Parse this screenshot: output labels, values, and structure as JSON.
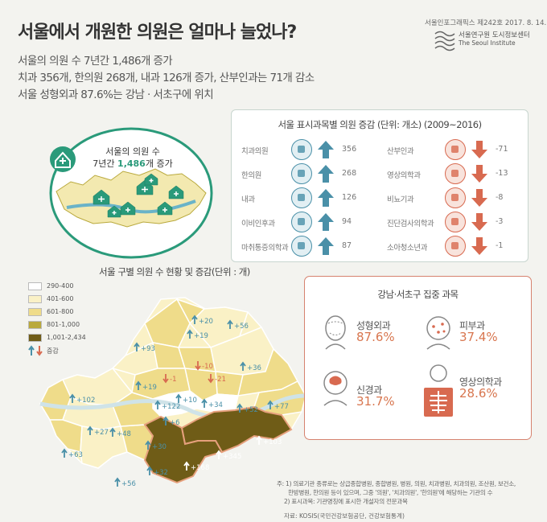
{
  "header": {
    "title": "서울에서 개원한 의원은 얼마나 늘었나?",
    "issue": "서울인포그래픽스 제242호 2017. 8. 14.",
    "institute_ko": "서울연구원 도시정보센터",
    "institute_en": "The Seoul Institute"
  },
  "summary": [
    "서울의 의원 수 7년간 1,486개 증가",
    "치과 356개, 한의원 268개, 내과 126개 증가, 산부인과는 71개 감소",
    "서울 성형외과 87.6%는 강남 · 서초구에 위치"
  ],
  "callout": {
    "line1": "서울의 의원 수",
    "line2_pre": "7년간 ",
    "line2_num": "1,486",
    "line2_post": "개 증가"
  },
  "colors": {
    "green": "#2a9a7a",
    "teal": "#4a90a8",
    "red": "#d86a50",
    "accent": "#e6a07d",
    "olive_dark": "#6f5c17"
  },
  "chart_data": [
    {
      "type": "bar",
      "title": "서울 표시과목별 의원 증감 (단위: 개소) (2009~2016)",
      "categories": [
        "치과의원",
        "한의원",
        "내과",
        "이비인후과",
        "마취통증의학과",
        "산부인과",
        "영상의학과",
        "비뇨기과",
        "진단검사의학과",
        "소아청소년과"
      ],
      "values": [
        356,
        268,
        126,
        94,
        87,
        -71,
        -13,
        -8,
        -3,
        -1
      ],
      "icons": [
        "tooth-icon",
        "herbal-medicine-icon",
        "xray-chest-icon",
        "ear-icon",
        "syringe-icon",
        "pregnant-woman-icon",
        "xray-body-icon",
        "kidney-icon",
        "lab-report-icon",
        "child-doctor-icon"
      ]
    },
    {
      "type": "map",
      "title": "서울 구별 의원 수 현황 및 증감(단위 : 개)",
      "legend": [
        "290-400",
        "401-600",
        "601-800",
        "801-1,000",
        "1,001-2,434",
        "증감"
      ],
      "legend_colors": [
        "#ffffff",
        "#faf1c6",
        "#efdc8a",
        "#b9a93c",
        "#6f5c17"
      ],
      "changes": [
        "+20",
        "+56",
        "+19",
        "+93",
        "-10",
        "-1",
        "-21",
        "+36",
        "+19",
        "+102",
        "+122",
        "+10",
        "+34",
        "+52",
        "+77",
        "+6",
        "+27",
        "+48",
        "+30",
        "+103",
        "+345",
        "+63",
        "+32",
        "+168",
        "+56"
      ]
    }
  ],
  "gangnam": {
    "title": "강남·서초구 집중 과목",
    "items": [
      {
        "name": "성형외과",
        "percent": "87.6%"
      },
      {
        "name": "피부과",
        "percent": "37.4%"
      },
      {
        "name": "신경과",
        "percent": "31.7%"
      },
      {
        "name": "영상의학과",
        "percent": "28.6%"
      }
    ]
  },
  "notes": [
    "주: 1) 의료기관 종류로는 상급종합병원, 종합병원, 병원, 의원, 치과병원, 치과의원, 조산원, 보건소,",
    "한방병원, 한의원 등이 있으며, 그중 '의원', '치과의원', '한의원'에 해당하는 기관의 수",
    "2) 표시과목: 기관명칭에 표시한 개설자의 전문과목"
  ],
  "source": "자료: KOSIS(국민건강보험공단, 건강보험통계)"
}
